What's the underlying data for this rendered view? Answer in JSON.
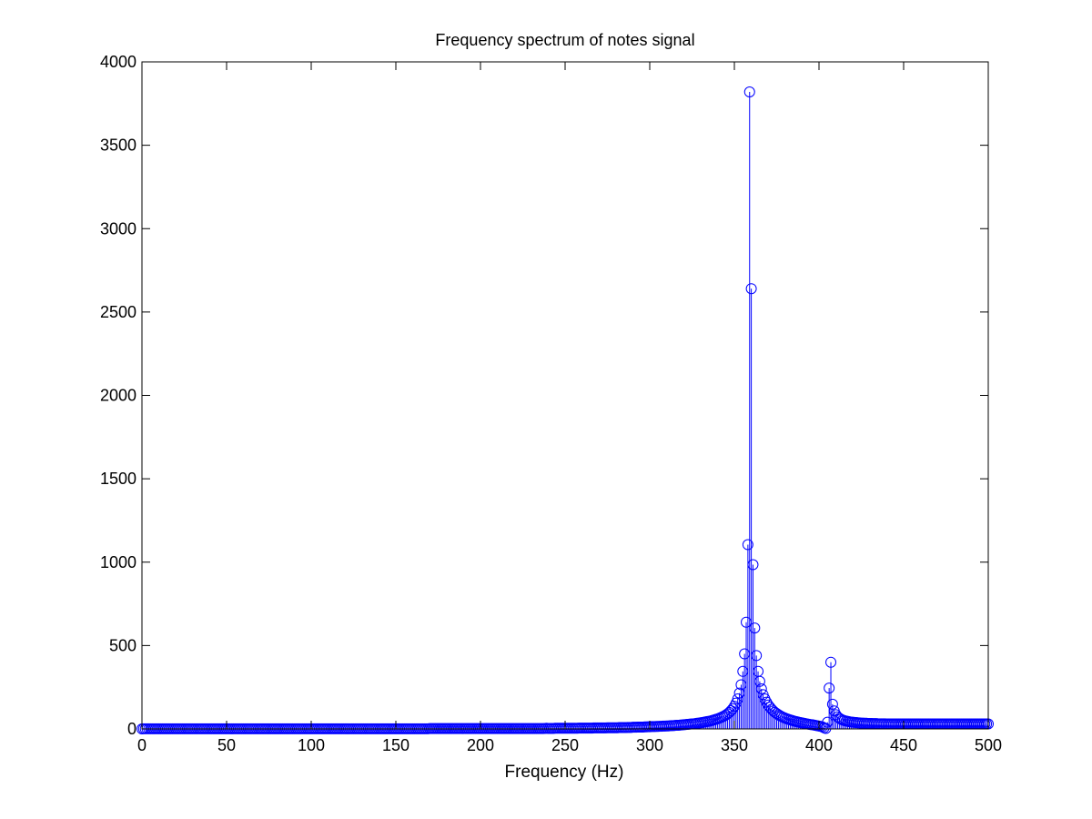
{
  "chart_data": {
    "type": "stem",
    "title": "Frequency spectrum of notes signal",
    "xlabel": "Frequency (Hz)",
    "ylabel": "",
    "xlim": [
      0,
      500
    ],
    "ylim": [
      0,
      4000
    ],
    "x_ticks": [
      0,
      50,
      100,
      150,
      200,
      250,
      300,
      350,
      400,
      450,
      500
    ],
    "y_ticks": [
      0,
      500,
      1000,
      1500,
      2000,
      2500,
      3000,
      3500,
      4000
    ],
    "grid": false,
    "legend": "none",
    "series": [
      {
        "color": "#0000ff",
        "marker": "circle",
        "x_start": 0,
        "x_step": 1,
        "values": [
          0,
          1,
          1,
          1,
          1,
          1,
          1,
          1,
          1,
          1,
          1,
          1,
          1,
          1,
          1,
          1,
          1,
          1,
          1,
          1,
          1,
          1,
          1,
          1,
          1,
          1,
          1,
          1,
          1,
          1,
          1,
          1,
          1,
          1,
          1,
          1,
          1,
          1,
          1,
          1,
          1,
          1,
          1,
          1,
          1,
          1,
          1,
          1,
          1,
          1,
          1,
          1,
          1,
          1,
          1,
          1,
          1,
          1,
          1,
          1,
          1,
          1,
          1,
          1,
          1,
          1,
          1,
          1,
          1,
          1,
          1,
          1,
          1,
          1,
          1,
          1,
          1,
          1,
          1,
          1,
          1,
          1,
          1,
          1,
          1,
          1,
          1,
          1,
          1,
          1,
          1,
          1,
          1,
          1,
          1,
          1,
          1,
          1,
          1,
          1,
          1,
          1,
          1,
          1,
          1,
          1,
          1,
          1,
          1,
          1,
          1,
          1,
          1,
          1,
          1,
          1,
          1,
          1,
          1,
          1,
          1,
          1,
          1,
          1,
          1,
          1,
          1,
          1,
          1,
          1,
          1,
          1,
          1,
          1,
          1,
          1,
          1,
          1,
          1,
          1,
          1,
          1,
          1,
          1,
          1,
          1,
          1,
          1,
          1,
          1,
          1,
          1,
          1,
          1,
          1,
          1,
          1,
          1,
          1,
          1,
          1,
          1,
          1,
          1,
          1,
          1,
          1,
          1,
          1,
          1,
          2,
          2,
          2,
          2,
          2,
          2,
          2,
          2,
          2,
          2,
          2,
          2,
          2,
          2,
          2,
          2,
          2,
          2,
          2,
          2,
          2,
          2,
          2,
          2,
          2,
          2,
          2,
          2,
          2,
          2,
          2,
          2,
          2,
          2,
          2,
          2,
          2,
          2,
          2,
          2,
          2,
          2,
          2,
          2,
          2,
          2,
          2,
          2,
          2,
          2,
          2,
          2,
          2,
          2,
          2,
          2,
          2,
          2,
          2,
          2,
          2,
          2,
          2,
          2,
          2,
          2,
          2,
          2,
          3,
          4,
          3,
          3,
          3,
          3,
          4,
          4,
          4,
          4,
          4,
          4,
          4,
          4,
          4,
          4,
          4,
          4,
          4,
          4,
          5,
          5,
          5,
          5,
          5,
          5,
          5,
          5,
          5,
          6,
          6,
          6,
          6,
          6,
          6,
          6,
          6,
          7,
          7,
          7,
          7,
          7,
          7,
          7,
          8,
          8,
          8,
          8,
          8,
          9,
          9,
          9,
          10,
          10,
          10,
          11,
          11,
          11,
          11,
          12,
          12,
          13,
          13,
          14,
          14,
          14,
          15,
          15,
          16,
          16,
          17,
          17,
          18,
          18,
          19,
          20,
          20,
          21,
          22,
          22,
          23,
          24,
          25,
          26,
          27,
          28,
          29,
          30,
          31,
          32,
          34,
          35,
          37,
          38,
          40,
          42,
          44,
          46,
          48,
          51,
          54,
          57,
          60,
          64,
          68,
          73,
          78,
          84,
          91,
          99,
          109,
          121,
          136,
          155,
          180,
          215,
          265,
          345,
          450,
          640,
          1105,
          3820,
          2640,
          985,
          605,
          440,
          345,
          285,
          240,
          205,
          180,
          160,
          143,
          130,
          118,
          108,
          99,
          92,
          85,
          79,
          74,
          69,
          65,
          61,
          57,
          54,
          51,
          48,
          45,
          43,
          40,
          38,
          36,
          34,
          32,
          30,
          28,
          26,
          25,
          23,
          21,
          19,
          17,
          15,
          12,
          7,
          3,
          40,
          245,
          400,
          148,
          108,
          85,
          72,
          64,
          58,
          53,
          50,
          47,
          45,
          43,
          41,
          40,
          39,
          38,
          37,
          36,
          35,
          35,
          34,
          34,
          33,
          33,
          33,
          32,
          32,
          32,
          31,
          31,
          31,
          31,
          31,
          30,
          30,
          30,
          30,
          30,
          30,
          30,
          30,
          30,
          30,
          30,
          30,
          30,
          30,
          30,
          30,
          30,
          30,
          30,
          30,
          30,
          30,
          30,
          30,
          30,
          30,
          30,
          30,
          30,
          30,
          30,
          30,
          30,
          30,
          30,
          30,
          30,
          30,
          30,
          30,
          30,
          30,
          30,
          30,
          30,
          30,
          30,
          30,
          30,
          30,
          30,
          30,
          30,
          30,
          30,
          30,
          30,
          30,
          30,
          30,
          30
        ]
      }
    ]
  }
}
